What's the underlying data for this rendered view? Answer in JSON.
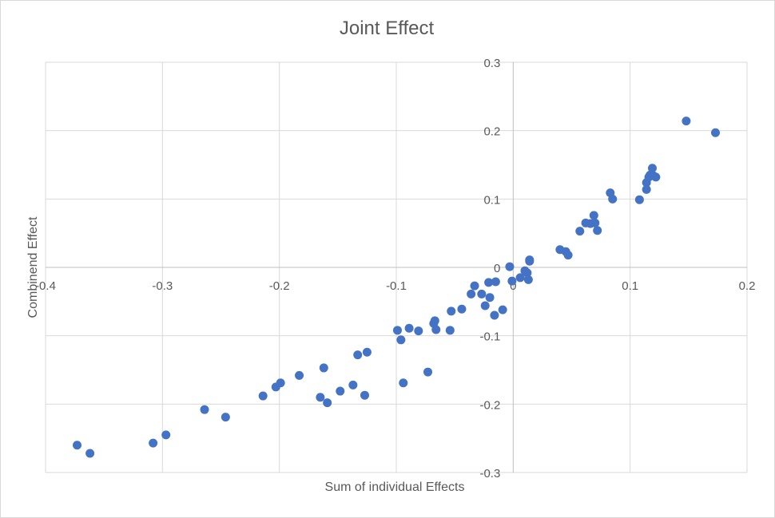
{
  "chart_data": {
    "type": "scatter",
    "title": "Joint Effect",
    "xlabel": "Sum of individual Effects",
    "ylabel": "Combinend Effect",
    "xlim": [
      -0.4,
      0.2
    ],
    "ylim": [
      -0.3,
      0.3
    ],
    "xticks": [
      "-0.4",
      "-0.3",
      "-0.2",
      "-0.1",
      "0",
      "0.1",
      "0.2"
    ],
    "yticks": [
      "-0.3",
      "-0.2",
      "-0.1",
      "0",
      "0.1",
      "0.2",
      "0.3"
    ],
    "xtick_values": [
      -0.4,
      -0.3,
      -0.2,
      -0.1,
      0,
      0.1,
      0.2
    ],
    "ytick_values": [
      -0.3,
      -0.2,
      -0.1,
      0,
      0.1,
      0.2,
      0.3
    ],
    "grid": true,
    "marker_color": "#4472c4",
    "series": [
      {
        "name": "Joint Effect",
        "points": [
          [
            -0.373,
            -0.26
          ],
          [
            -0.362,
            -0.272
          ],
          [
            -0.308,
            -0.257
          ],
          [
            -0.297,
            -0.245
          ],
          [
            -0.264,
            -0.208
          ],
          [
            -0.246,
            -0.219
          ],
          [
            -0.214,
            -0.188
          ],
          [
            -0.203,
            -0.175
          ],
          [
            -0.199,
            -0.169
          ],
          [
            -0.183,
            -0.158
          ],
          [
            -0.165,
            -0.19
          ],
          [
            -0.162,
            -0.147
          ],
          [
            -0.159,
            -0.198
          ],
          [
            -0.148,
            -0.181
          ],
          [
            -0.137,
            -0.172
          ],
          [
            -0.133,
            -0.128
          ],
          [
            -0.127,
            -0.187
          ],
          [
            -0.125,
            -0.124
          ],
          [
            -0.099,
            -0.092
          ],
          [
            -0.096,
            -0.106
          ],
          [
            -0.094,
            -0.169
          ],
          [
            -0.089,
            -0.089
          ],
          [
            -0.081,
            -0.093
          ],
          [
            -0.073,
            -0.153
          ],
          [
            -0.068,
            -0.082
          ],
          [
            -0.067,
            -0.078
          ],
          [
            -0.066,
            -0.091
          ],
          [
            -0.054,
            -0.092
          ],
          [
            -0.053,
            -0.064
          ],
          [
            -0.044,
            -0.061
          ],
          [
            -0.036,
            -0.039
          ],
          [
            -0.033,
            -0.027
          ],
          [
            -0.027,
            -0.039
          ],
          [
            -0.024,
            -0.056
          ],
          [
            -0.021,
            -0.022
          ],
          [
            -0.02,
            -0.044
          ],
          [
            -0.016,
            -0.07
          ],
          [
            -0.015,
            -0.021
          ],
          [
            -0.009,
            -0.062
          ],
          [
            -0.003,
            0.001
          ],
          [
            -0.001,
            -0.02
          ],
          [
            0.006,
            -0.015
          ],
          [
            0.01,
            -0.005
          ],
          [
            0.012,
            -0.008
          ],
          [
            0.013,
            -0.018
          ],
          [
            0.014,
            0.009
          ],
          [
            0.014,
            0.011
          ],
          [
            0.04,
            0.026
          ],
          [
            0.045,
            0.023
          ],
          [
            0.047,
            0.018
          ],
          [
            0.057,
            0.053
          ],
          [
            0.062,
            0.065
          ],
          [
            0.066,
            0.064
          ],
          [
            0.069,
            0.076
          ],
          [
            0.07,
            0.065
          ],
          [
            0.072,
            0.054
          ],
          [
            0.083,
            0.109
          ],
          [
            0.085,
            0.1
          ],
          [
            0.108,
            0.099
          ],
          [
            0.114,
            0.114
          ],
          [
            0.114,
            0.124
          ],
          [
            0.116,
            0.132
          ],
          [
            0.117,
            0.135
          ],
          [
            0.119,
            0.145
          ],
          [
            0.12,
            0.134
          ],
          [
            0.122,
            0.132
          ],
          [
            0.148,
            0.214
          ],
          [
            0.173,
            0.197
          ]
        ]
      }
    ]
  }
}
